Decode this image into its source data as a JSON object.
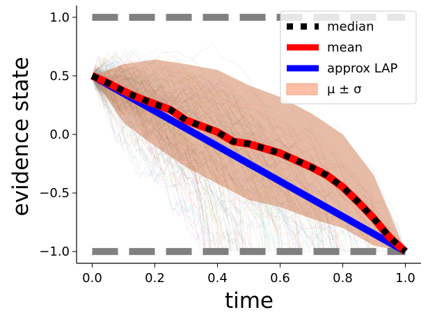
{
  "chart_data": {
    "type": "line",
    "xlabel": "time",
    "ylabel": "evidence state",
    "xlim": [
      -0.05,
      1.05
    ],
    "ylim": [
      -1.1,
      1.1
    ],
    "xticks": [
      0.0,
      0.2,
      0.4,
      0.6,
      0.8,
      1.0
    ],
    "xtick_labels": [
      "0.0",
      "0.2",
      "0.4",
      "0.6",
      "0.8",
      "1.0"
    ],
    "yticks": [
      1.0,
      0.5,
      0.0,
      -0.5,
      -1.0
    ],
    "ytick_labels": [
      "1.0",
      "0.5",
      "0.0",
      "−0.5",
      "−1.0"
    ],
    "bounds": {
      "upper": 1.0,
      "lower": -1.0,
      "color": "#808080",
      "style": "dashed"
    },
    "legend": {
      "position": "top-right",
      "entries": [
        {
          "label": "median",
          "style": "dotted",
          "color": "#000000"
        },
        {
          "label": "mean",
          "style": "line",
          "color": "#ff0000"
        },
        {
          "label": "approx LAP",
          "style": "line",
          "color": "#0000ff"
        },
        {
          "label": "μ ± σ",
          "style": "patch",
          "color": "#ffbfa6"
        }
      ]
    },
    "series": [
      {
        "name": "mean",
        "color": "#ff0000",
        "x": [
          0.0,
          0.05,
          0.1,
          0.15,
          0.2,
          0.25,
          0.3,
          0.35,
          0.4,
          0.45,
          0.5,
          0.55,
          0.6,
          0.65,
          0.7,
          0.75,
          0.8,
          0.85,
          0.9,
          0.95,
          1.0
        ],
        "y": [
          0.5,
          0.44,
          0.37,
          0.31,
          0.26,
          0.21,
          0.12,
          0.07,
          0.02,
          -0.06,
          -0.08,
          -0.12,
          -0.16,
          -0.22,
          -0.28,
          -0.35,
          -0.45,
          -0.58,
          -0.72,
          -0.88,
          -1.0
        ]
      },
      {
        "name": "median",
        "color": "#000000",
        "x": [
          0.0,
          0.05,
          0.1,
          0.15,
          0.2,
          0.25,
          0.3,
          0.35,
          0.4,
          0.45,
          0.5,
          0.55,
          0.6,
          0.65,
          0.7,
          0.75,
          0.8,
          0.85,
          0.9,
          0.95,
          1.0
        ],
        "y": [
          0.5,
          0.44,
          0.37,
          0.31,
          0.26,
          0.21,
          0.12,
          0.07,
          0.02,
          -0.06,
          -0.08,
          -0.12,
          -0.16,
          -0.22,
          -0.28,
          -0.35,
          -0.45,
          -0.58,
          -0.72,
          -0.88,
          -1.0
        ]
      },
      {
        "name": "approx LAP",
        "color": "#0000ff",
        "x": [
          0.0,
          1.0
        ],
        "y": [
          0.5,
          -1.0
        ]
      }
    ],
    "band": {
      "name": "μ ± σ",
      "color": "#c96a3c",
      "x": [
        0.0,
        0.1,
        0.2,
        0.3,
        0.4,
        0.5,
        0.6,
        0.7,
        0.8,
        0.9,
        1.0
      ],
      "upper": [
        0.5,
        0.6,
        0.64,
        0.6,
        0.55,
        0.42,
        0.32,
        0.18,
        0.0,
        -0.35,
        -1.0
      ],
      "lower": [
        0.5,
        0.1,
        -0.1,
        -0.28,
        -0.42,
        -0.56,
        -0.62,
        -0.72,
        -0.8,
        -0.95,
        -1.0
      ]
    }
  }
}
